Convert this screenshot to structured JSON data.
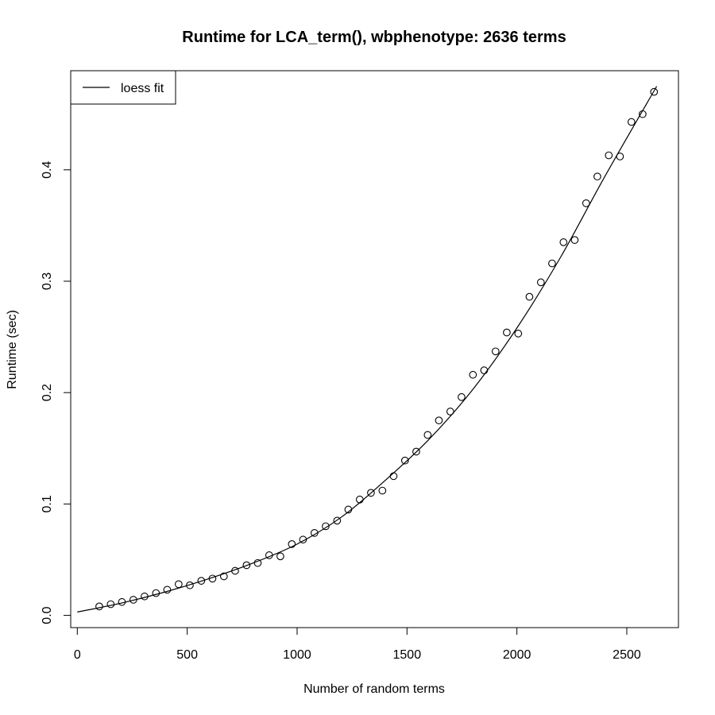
{
  "chart_data": {
    "type": "scatter",
    "title": "Runtime for LCA_term(), wbphenotype: 2636 terms",
    "xlabel": "Number of random terms",
    "ylabel": "Runtime (sec)",
    "xlim": [
      -30,
      2735
    ],
    "ylim": [
      -0.011,
      0.489
    ],
    "x_ticks": [
      0,
      500,
      1000,
      1500,
      2000,
      2500
    ],
    "x_tick_labels": [
      "0",
      "500",
      "1000",
      "1500",
      "2000",
      "2500"
    ],
    "y_ticks": [
      0.0,
      0.1,
      0.2,
      0.3,
      0.4
    ],
    "y_tick_labels": [
      "0.0",
      "0.1",
      "0.2",
      "0.3",
      "0.4"
    ],
    "grid": false,
    "legend": {
      "position": "top-left",
      "entries": [
        "loess fit"
      ]
    },
    "series": [
      {
        "type": "scatter",
        "marker": "open-circle",
        "x": [
          100,
          152,
          203,
          255,
          306,
          358,
          409,
          461,
          512,
          564,
          615,
          667,
          718,
          770,
          821,
          873,
          924,
          976,
          1027,
          1079,
          1130,
          1182,
          1233,
          1285,
          1336,
          1388,
          1439,
          1491,
          1542,
          1594,
          1645,
          1697,
          1748,
          1800,
          1851,
          1903,
          1954,
          2006,
          2057,
          2109,
          2160,
          2212,
          2263,
          2315,
          2366,
          2418,
          2469,
          2521,
          2572,
          2624
        ],
        "y": [
          0.008,
          0.01,
          0.012,
          0.014,
          0.017,
          0.02,
          0.023,
          0.028,
          0.027,
          0.031,
          0.033,
          0.035,
          0.04,
          0.045,
          0.047,
          0.054,
          0.053,
          0.064,
          0.068,
          0.074,
          0.08,
          0.085,
          0.095,
          0.104,
          0.11,
          0.112,
          0.125,
          0.139,
          0.147,
          0.162,
          0.175,
          0.183,
          0.196,
          0.216,
          0.22,
          0.237,
          0.254,
          0.253,
          0.286,
          0.299,
          0.316,
          0.335,
          0.337,
          0.37,
          0.394,
          0.413,
          0.412,
          0.443,
          0.45,
          0.47
        ]
      },
      {
        "type": "line",
        "name": "loess fit",
        "x": [
          0,
          200,
          400,
          600,
          800,
          1000,
          1200,
          1400,
          1600,
          1800,
          2000,
          2200,
          2400,
          2636
        ],
        "y": [
          0.003,
          0.011,
          0.021,
          0.033,
          0.047,
          0.064,
          0.088,
          0.121,
          0.158,
          0.203,
          0.258,
          0.322,
          0.394,
          0.475
        ]
      }
    ]
  }
}
